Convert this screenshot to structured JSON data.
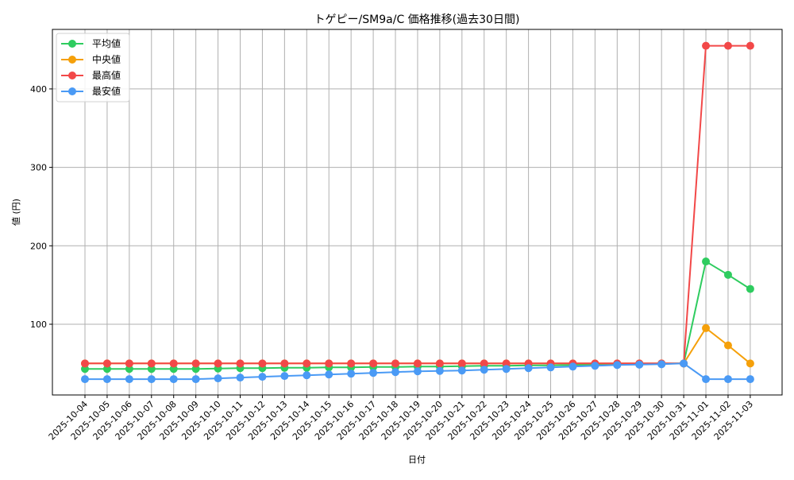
{
  "chart_data": {
    "type": "line",
    "title": "トゲピー/SM9a/C 価格推移(過去30日間)",
    "xlabel": "日付",
    "ylabel": "値 (円)",
    "ylim": [
      11,
      477
    ],
    "yticks": [
      100,
      200,
      300,
      400
    ],
    "grid": true,
    "legend_position": "upper left",
    "categories": [
      "2025-10-04",
      "2025-10-05",
      "2025-10-06",
      "2025-10-07",
      "2025-10-08",
      "2025-10-09",
      "2025-10-10",
      "2025-10-11",
      "2025-10-12",
      "2025-10-13",
      "2025-10-14",
      "2025-10-15",
      "2025-10-16",
      "2025-10-17",
      "2025-10-18",
      "2025-10-19",
      "2025-10-20",
      "2025-10-21",
      "2025-10-22",
      "2025-10-23",
      "2025-10-24",
      "2025-10-25",
      "2025-10-26",
      "2025-10-27",
      "2025-10-28",
      "2025-10-29",
      "2025-10-30",
      "2025-10-31",
      "2025-11-01",
      "2025-11-02",
      "2025-11-03"
    ],
    "series": [
      {
        "name": "平均値",
        "color": "#2ecc5f",
        "values": [
          43,
          43,
          43,
          43,
          43,
          43,
          43.5,
          44,
          44,
          44.5,
          44.5,
          45,
          45,
          45.5,
          45.5,
          46,
          46,
          46.5,
          47,
          47,
          47.5,
          47.5,
          48,
          48.5,
          48.5,
          49,
          49.5,
          50,
          180,
          163,
          145
        ]
      },
      {
        "name": "中央値",
        "color": "#f5a00a",
        "values": [
          50,
          50,
          50,
          50,
          50,
          50,
          50,
          50,
          50,
          50,
          50,
          50,
          50,
          50,
          50,
          50,
          50,
          50,
          50,
          50,
          50,
          50,
          50,
          50,
          50,
          50,
          50,
          50,
          95,
          73,
          50
        ]
      },
      {
        "name": "最高値",
        "color": "#f24848",
        "values": [
          50,
          50,
          50,
          50,
          50,
          50,
          50,
          50,
          50,
          50,
          50,
          50,
          50,
          50,
          50,
          50,
          50,
          50,
          50,
          50,
          50,
          50,
          50,
          50,
          50,
          50,
          50,
          50,
          455,
          455,
          455
        ]
      },
      {
        "name": "最安値",
        "color": "#4a9af5",
        "values": [
          30,
          30,
          30,
          30,
          30,
          30,
          31,
          32,
          33,
          34,
          35,
          36,
          37,
          38,
          39,
          40,
          40.5,
          41,
          42,
          43,
          44,
          45,
          46,
          47,
          48,
          48.5,
          49,
          50,
          30,
          30,
          30
        ]
      }
    ]
  }
}
